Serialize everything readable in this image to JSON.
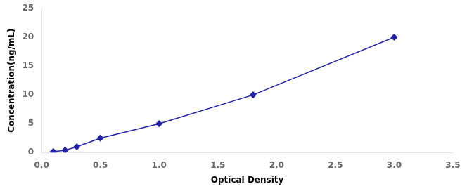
{
  "chart_data": {
    "type": "line",
    "x": [
      0.1,
      0.2,
      0.3,
      0.5,
      1.0,
      1.8,
      3.0
    ],
    "values": [
      0.16,
      0.4,
      1.0,
      2.5,
      5.0,
      10.0,
      20.0
    ],
    "color": "#2222aa",
    "marker": "diamond",
    "xlabel": "Optical Density",
    "ylabel": "Concentration(ng/mL)",
    "xlim": [
      0,
      3.5
    ],
    "ylim": [
      0,
      25
    ],
    "xticks": [
      {
        "value": 0,
        "label": "0.0"
      },
      0.5,
      {
        "value": 1,
        "label": "1.0"
      },
      1.5,
      {
        "value": 2,
        "label": "2.0"
      },
      2.5,
      {
        "value": 3,
        "label": "3.0"
      },
      3.5
    ],
    "yticks": [
      0,
      5,
      10,
      15,
      20,
      25
    ],
    "grid": false
  }
}
